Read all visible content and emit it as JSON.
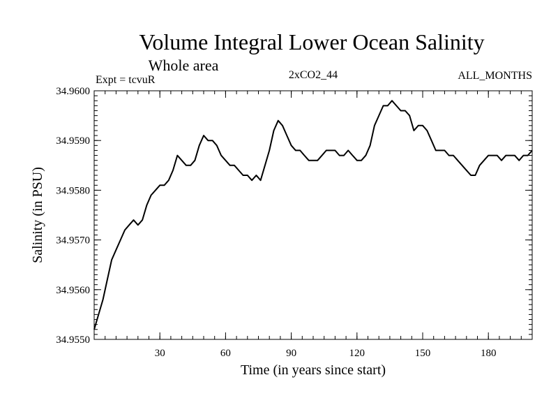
{
  "chart_data": {
    "type": "line",
    "title": "Volume Integral Lower Ocean Salinity",
    "subtitle": "Whole area",
    "header_left": "Expt = tcvuR",
    "header_center": "2xCO2_44",
    "header_right": "ALL_MONTHS",
    "xlabel": "Time (in years since start)",
    "ylabel": "Salinity (in PSU)",
    "xlim": [
      0,
      200
    ],
    "ylim": [
      34.955,
      34.96
    ],
    "x_ticks": [
      30,
      60,
      90,
      120,
      150,
      180
    ],
    "x_tick_labels": [
      "30",
      "60",
      "90",
      "120",
      "150",
      "180"
    ],
    "y_ticks": [
      34.955,
      34.956,
      34.957,
      34.958,
      34.959,
      34.96
    ],
    "y_tick_labels": [
      "34.9550",
      "34.9560",
      "34.9570",
      "34.9580",
      "34.9590",
      "34.9600"
    ],
    "grid": false,
    "series": [
      {
        "x": [
          0,
          2,
          4,
          6,
          8,
          10,
          12,
          14,
          16,
          18,
          20,
          22,
          24,
          26,
          28,
          30,
          32,
          34,
          36,
          38,
          40,
          42,
          44,
          46,
          48,
          50,
          52,
          54,
          56,
          58,
          60,
          62,
          64,
          66,
          68,
          70,
          72,
          74,
          76,
          78,
          80,
          82,
          84,
          86,
          88,
          90,
          92,
          94,
          96,
          98,
          100,
          102,
          104,
          106,
          108,
          110,
          112,
          114,
          116,
          118,
          120,
          122,
          124,
          126,
          128,
          130,
          132,
          134,
          136,
          138,
          140,
          142,
          144,
          146,
          148,
          150,
          152,
          154,
          156,
          158,
          160,
          162,
          164,
          166,
          168,
          170,
          172,
          174,
          176,
          178,
          180,
          182,
          184,
          186,
          188,
          190,
          192,
          194,
          196,
          198,
          200
        ],
        "y": [
          34.9552,
          34.9555,
          34.9558,
          34.9562,
          34.9566,
          34.9568,
          34.957,
          34.9572,
          34.9573,
          34.9574,
          34.9573,
          34.9574,
          34.9577,
          34.9579,
          34.958,
          34.9581,
          34.9581,
          34.9582,
          34.9584,
          34.9587,
          34.9586,
          34.9585,
          34.9585,
          34.9586,
          34.9589,
          34.9591,
          34.959,
          34.959,
          34.9589,
          34.9587,
          34.9586,
          34.9585,
          34.9585,
          34.9584,
          34.9583,
          34.9583,
          34.9582,
          34.9583,
          34.9582,
          34.9585,
          34.9588,
          34.9592,
          34.9594,
          34.9593,
          34.9591,
          34.9589,
          34.9588,
          34.9588,
          34.9587,
          34.9586,
          34.9586,
          34.9586,
          34.9587,
          34.9588,
          34.9588,
          34.9588,
          34.9587,
          34.9587,
          34.9588,
          34.9587,
          34.9586,
          34.9586,
          34.9587,
          34.9589,
          34.9593,
          34.9595,
          34.9597,
          34.9597,
          34.9598,
          34.9597,
          34.9596,
          34.9596,
          34.9595,
          34.9592,
          34.9593,
          34.9593,
          34.9592,
          34.959,
          34.9588,
          34.9588,
          34.9588,
          34.9587,
          34.9587,
          34.9586,
          34.9585,
          34.9584,
          34.9583,
          34.9583,
          34.9585,
          34.9586,
          34.9587,
          34.9587,
          34.9587,
          34.9586,
          34.9587,
          34.9587,
          34.9587,
          34.9586,
          34.9587,
          34.9587,
          34.9588
        ]
      }
    ]
  }
}
